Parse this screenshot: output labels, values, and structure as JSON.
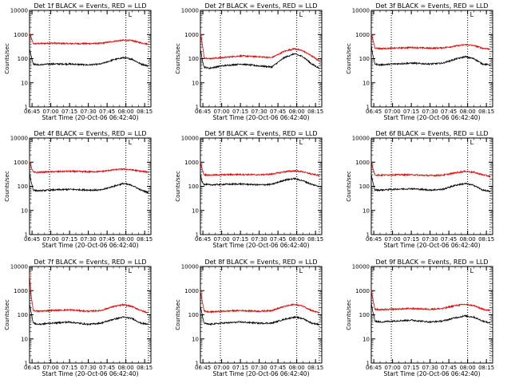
{
  "chart_data": [
    {
      "type": "line",
      "title": "Det 1f BLACK = Events, RED = LLD",
      "xlabel": "Start Time (20-Oct-06 06:42:40)",
      "ylabel": "Counts/sec",
      "yscale": "log",
      "ylim": [
        1,
        10000
      ],
      "xlim": [
        "06:43",
        "08:20"
      ],
      "x_tick_labels": [
        "06:45",
        "07:00",
        "07:15",
        "07:30",
        "07:45",
        "08:00",
        "08:15"
      ],
      "y_tick_labels": [
        "1",
        "10",
        "100",
        "1000",
        "10000"
      ],
      "vertical_markers": [
        "06:59",
        "08:00",
        "08:18"
      ],
      "annotation": "L",
      "grid": false,
      "x": [
        "06:43",
        "06:44",
        "06:46",
        "06:50",
        "07:00",
        "07:15",
        "07:30",
        "07:40",
        "07:50",
        "07:58",
        "08:05",
        "08:12",
        "08:18"
      ],
      "series": [
        {
          "name": "RED = LLD",
          "color": "#e00000",
          "values": [
            1200,
            800,
            420,
            420,
            440,
            420,
            420,
            430,
            520,
            580,
            560,
            450,
            400
          ]
        },
        {
          "name": "BLACK = Events",
          "color": "#000000",
          "values": [
            250,
            150,
            60,
            55,
            60,
            60,
            55,
            60,
            90,
            110,
            95,
            60,
            50
          ]
        }
      ]
    },
    {
      "type": "line",
      "title": "Det 2f BLACK = Events, RED = LLD",
      "xlabel": "Start Time (20-Oct-06 06:42:40)",
      "ylabel": "Counts/sec",
      "yscale": "log",
      "ylim": [
        1,
        10000
      ],
      "xlim": [
        "06:43",
        "08:20"
      ],
      "x_tick_labels": [
        "06:45",
        "07:00",
        "07:15",
        "07:30",
        "07:45",
        "08:00",
        "08:15"
      ],
      "y_tick_labels": [
        "1",
        "10",
        "100",
        "1000",
        "10000"
      ],
      "vertical_markers": [
        "06:59",
        "08:00",
        "08:18"
      ],
      "annotation": "L",
      "grid": false,
      "x": [
        "06:43",
        "06:44",
        "06:46",
        "06:50",
        "07:00",
        "07:15",
        "07:30",
        "07:40",
        "07:50",
        "07:58",
        "08:05",
        "08:12",
        "08:18"
      ],
      "series": [
        {
          "name": "RED = LLD",
          "color": "#e00000",
          "values": [
            1000,
            600,
            110,
            100,
            110,
            130,
            120,
            110,
            200,
            260,
            210,
            130,
            80
          ]
        },
        {
          "name": "BLACK = Events",
          "color": "#000000",
          "values": [
            250,
            120,
            45,
            40,
            50,
            60,
            50,
            45,
            110,
            160,
            120,
            60,
            40
          ]
        }
      ]
    },
    {
      "type": "line",
      "title": "Det 3f BLACK = Events, RED = LLD",
      "xlabel": "Start Time (20-Oct-06 06:42:40)",
      "ylabel": "Counts/sec",
      "yscale": "log",
      "ylim": [
        1,
        10000
      ],
      "xlim": [
        "06:43",
        "08:20"
      ],
      "x_tick_labels": [
        "06:45",
        "07:00",
        "07:15",
        "07:30",
        "07:45",
        "08:00",
        "08:15"
      ],
      "y_tick_labels": [
        "1",
        "10",
        "100",
        "1000",
        "10000"
      ],
      "vertical_markers": [
        "06:59",
        "08:00",
        "08:18"
      ],
      "annotation": "L",
      "grid": false,
      "x": [
        "06:43",
        "06:44",
        "06:46",
        "06:50",
        "07:00",
        "07:15",
        "07:30",
        "07:40",
        "07:50",
        "07:58",
        "08:05",
        "08:12",
        "08:18"
      ],
      "series": [
        {
          "name": "RED = LLD",
          "color": "#e00000",
          "values": [
            1000,
            700,
            280,
            260,
            270,
            290,
            270,
            280,
            330,
            380,
            350,
            270,
            250
          ]
        },
        {
          "name": "BLACK = Events",
          "color": "#000000",
          "values": [
            350,
            160,
            60,
            55,
            60,
            65,
            60,
            65,
            95,
            120,
            100,
            60,
            55
          ]
        }
      ]
    },
    {
      "type": "line",
      "title": "Det 4f BLACK = Events, RED = LLD",
      "xlabel": "Start Time (20-Oct-06 06:42:40)",
      "ylabel": "Counts/sec",
      "yscale": "log",
      "ylim": [
        1,
        10000
      ],
      "xlim": [
        "06:43",
        "08:20"
      ],
      "x_tick_labels": [
        "06:45",
        "07:00",
        "07:15",
        "07:30",
        "07:45",
        "08:00",
        "08:15"
      ],
      "y_tick_labels": [
        "1",
        "10",
        "100",
        "1000",
        "10000"
      ],
      "vertical_markers": [
        "06:59",
        "08:00",
        "08:18"
      ],
      "annotation": "L",
      "grid": false,
      "x": [
        "06:43",
        "06:44",
        "06:46",
        "06:50",
        "07:00",
        "07:15",
        "07:30",
        "07:40",
        "07:50",
        "07:58",
        "08:05",
        "08:12",
        "08:18"
      ],
      "series": [
        {
          "name": "RED = LLD",
          "color": "#e00000",
          "values": [
            1200,
            700,
            380,
            380,
            400,
            420,
            400,
            410,
            480,
            520,
            480,
            420,
            390
          ]
        },
        {
          "name": "BLACK = Events",
          "color": "#000000",
          "values": [
            400,
            180,
            70,
            65,
            70,
            75,
            70,
            70,
            100,
            130,
            110,
            70,
            55
          ]
        }
      ]
    },
    {
      "type": "line",
      "title": "Det 5f BLACK = Events, RED = LLD",
      "xlabel": "Start Time (20-Oct-06 06:42:40)",
      "ylabel": "Counts/sec",
      "yscale": "log",
      "ylim": [
        1,
        10000
      ],
      "xlim": [
        "06:43",
        "08:20"
      ],
      "x_tick_labels": [
        "06:45",
        "07:00",
        "07:15",
        "07:30",
        "07:45",
        "08:00",
        "08:15"
      ],
      "y_tick_labels": [
        "1",
        "10",
        "100",
        "1000",
        "10000"
      ],
      "vertical_markers": [
        "06:59",
        "08:00",
        "08:18"
      ],
      "annotation": "L",
      "grid": false,
      "x": [
        "06:43",
        "06:44",
        "06:46",
        "06:50",
        "07:00",
        "07:15",
        "07:30",
        "07:40",
        "07:50",
        "07:58",
        "08:05",
        "08:12",
        "08:18"
      ],
      "series": [
        {
          "name": "RED = LLD",
          "color": "#e00000",
          "values": [
            1000,
            600,
            300,
            290,
            300,
            310,
            300,
            320,
            400,
            440,
            400,
            320,
            280
          ]
        },
        {
          "name": "BLACK = Events",
          "color": "#000000",
          "values": [
            350,
            170,
            120,
            115,
            120,
            125,
            115,
            120,
            180,
            210,
            170,
            120,
            100
          ]
        }
      ]
    },
    {
      "type": "line",
      "title": "Det 6f BLACK = Events, RED = LLD",
      "xlabel": "Start Time (20-Oct-06 06:42:40)",
      "ylabel": "Counts/sec",
      "yscale": "log",
      "ylim": [
        1,
        10000
      ],
      "xlim": [
        "06:43",
        "08:20"
      ],
      "x_tick_labels": [
        "06:45",
        "07:00",
        "07:15",
        "07:30",
        "07:45",
        "08:00",
        "08:15"
      ],
      "y_tick_labels": [
        "1",
        "10",
        "100",
        "1000",
        "10000"
      ],
      "vertical_markers": [
        "06:59",
        "08:00",
        "08:18"
      ],
      "annotation": "L",
      "grid": false,
      "x": [
        "06:43",
        "06:44",
        "06:46",
        "06:50",
        "07:00",
        "07:15",
        "07:30",
        "07:40",
        "07:50",
        "07:58",
        "08:05",
        "08:12",
        "08:18"
      ],
      "series": [
        {
          "name": "RED = LLD",
          "color": "#e00000",
          "values": [
            1000,
            600,
            300,
            290,
            300,
            300,
            280,
            290,
            360,
            420,
            380,
            300,
            260
          ]
        },
        {
          "name": "BLACK = Events",
          "color": "#000000",
          "values": [
            300,
            160,
            70,
            70,
            75,
            80,
            70,
            75,
            110,
            130,
            110,
            70,
            60
          ]
        }
      ]
    },
    {
      "type": "line",
      "title": "Det 7f BLACK = Events, RED = LLD",
      "xlabel": "Start Time (20-Oct-06 06:42:40)",
      "ylabel": "Counts/sec",
      "yscale": "log",
      "ylim": [
        1,
        10000
      ],
      "xlim": [
        "06:43",
        "08:20"
      ],
      "x_tick_labels": [
        "06:45",
        "07:00",
        "07:15",
        "07:30",
        "07:45",
        "08:00",
        "08:15"
      ],
      "y_tick_labels": [
        "1",
        "10",
        "100",
        "1000",
        "10000"
      ],
      "vertical_markers": [
        "06:59",
        "08:00",
        "08:18"
      ],
      "annotation": "L",
      "grid": false,
      "x": [
        "06:43",
        "06:44",
        "06:46",
        "06:50",
        "07:00",
        "07:15",
        "07:30",
        "07:40",
        "07:50",
        "07:58",
        "08:05",
        "08:12",
        "08:18"
      ],
      "series": [
        {
          "name": "RED = LLD",
          "color": "#e00000",
          "values": [
            5000,
            800,
            150,
            140,
            150,
            160,
            140,
            150,
            220,
            260,
            220,
            150,
            120
          ]
        },
        {
          "name": "BLACK = Events",
          "color": "#000000",
          "values": [
            300,
            150,
            45,
            40,
            45,
            50,
            40,
            45,
            65,
            80,
            70,
            45,
            40
          ]
        }
      ]
    },
    {
      "type": "line",
      "title": "Det 8f BLACK = Events, RED = LLD",
      "xlabel": "Start Time (20-Oct-06 06:42:40)",
      "ylabel": "Counts/sec",
      "yscale": "log",
      "ylim": [
        1,
        10000
      ],
      "xlim": [
        "06:43",
        "08:20"
      ],
      "x_tick_labels": [
        "06:45",
        "07:00",
        "07:15",
        "07:30",
        "07:45",
        "08:00",
        "08:15"
      ],
      "y_tick_labels": [
        "1",
        "10",
        "100",
        "1000",
        "10000"
      ],
      "vertical_markers": [
        "06:59",
        "08:00",
        "08:18"
      ],
      "annotation": "L",
      "grid": false,
      "x": [
        "06:43",
        "06:44",
        "06:46",
        "06:50",
        "07:00",
        "07:15",
        "07:30",
        "07:40",
        "07:50",
        "07:58",
        "08:05",
        "08:12",
        "08:18"
      ],
      "series": [
        {
          "name": "RED = LLD",
          "color": "#e00000",
          "values": [
            1000,
            500,
            140,
            130,
            140,
            150,
            140,
            150,
            220,
            270,
            230,
            150,
            120
          ]
        },
        {
          "name": "BLACK = Events",
          "color": "#000000",
          "values": [
            250,
            120,
            45,
            40,
            45,
            50,
            45,
            45,
            65,
            80,
            70,
            45,
            40
          ]
        }
      ]
    },
    {
      "type": "line",
      "title": "Det 9f BLACK = Events, RED = LLD",
      "xlabel": "Start Time (20-Oct-06 06:42:40)",
      "ylabel": "Counts/sec",
      "yscale": "log",
      "ylim": [
        1,
        10000
      ],
      "xlim": [
        "06:43",
        "08:20"
      ],
      "x_tick_labels": [
        "06:45",
        "07:00",
        "07:15",
        "07:30",
        "07:45",
        "08:00",
        "08:15"
      ],
      "y_tick_labels": [
        "1",
        "10",
        "100",
        "1000",
        "10000"
      ],
      "vertical_markers": [
        "06:59",
        "08:00",
        "08:18"
      ],
      "annotation": "L",
      "grid": false,
      "x": [
        "06:43",
        "06:44",
        "06:46",
        "06:50",
        "07:00",
        "07:15",
        "07:30",
        "07:40",
        "07:50",
        "07:58",
        "08:05",
        "08:12",
        "08:18"
      ],
      "series": [
        {
          "name": "RED = LLD",
          "color": "#e00000",
          "values": [
            1000,
            500,
            170,
            160,
            170,
            180,
            170,
            180,
            240,
            270,
            240,
            170,
            150
          ]
        },
        {
          "name": "BLACK = Events",
          "color": "#000000",
          "values": [
            300,
            150,
            55,
            50,
            55,
            60,
            50,
            55,
            75,
            90,
            80,
            55,
            45
          ]
        }
      ]
    }
  ]
}
